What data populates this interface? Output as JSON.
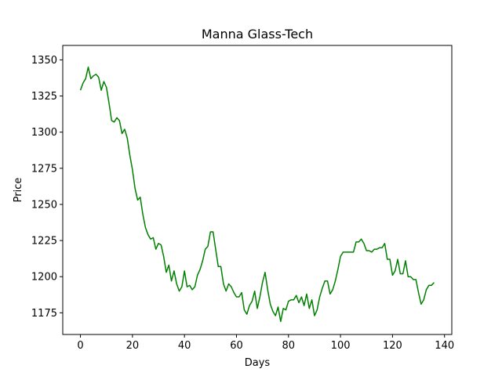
{
  "chart_data": {
    "type": "line",
    "title": "Manna Glass-Tech",
    "xlabel": "Days",
    "ylabel": "Price",
    "xlim": [
      -6.8,
      142.8
    ],
    "ylim": [
      1160,
      1360
    ],
    "xticks": [
      0,
      20,
      40,
      60,
      80,
      100,
      120,
      140
    ],
    "yticks": [
      1175,
      1200,
      1225,
      1250,
      1275,
      1300,
      1325,
      1350
    ],
    "grid": false,
    "line_color": "#008000",
    "series": [
      {
        "x": [
          0,
          1,
          2,
          3,
          4,
          5,
          6,
          7,
          8,
          9,
          10,
          11,
          12,
          13,
          14,
          15,
          16,
          17,
          18,
          19,
          20,
          21,
          22,
          23,
          24,
          25,
          26,
          27,
          28,
          29,
          30,
          31,
          32,
          33,
          34,
          35,
          36,
          37,
          38,
          39,
          40,
          41,
          42,
          43,
          44,
          45,
          46,
          47,
          48,
          49,
          50,
          51,
          52,
          53,
          54,
          55,
          56,
          57,
          58,
          59,
          60,
          61,
          62,
          63,
          64,
          65,
          66,
          67,
          68,
          69,
          70,
          71,
          72,
          73,
          74,
          75,
          76,
          77,
          78,
          79,
          80,
          81,
          82,
          83,
          84,
          85,
          86,
          87,
          88,
          89,
          90,
          91,
          92,
          93,
          94,
          95,
          96,
          97,
          98,
          99,
          100,
          101,
          102,
          103,
          104,
          105,
          106,
          107,
          108,
          109,
          110,
          111,
          112,
          113,
          114,
          115,
          116,
          117,
          118,
          119,
          120,
          121,
          122,
          123,
          124,
          125,
          126,
          127,
          128,
          129,
          130,
          131,
          132,
          133,
          134,
          135,
          136
        ],
        "y": [
          1329,
          1334,
          1337,
          1345,
          1337,
          1339,
          1340,
          1338,
          1329,
          1335,
          1331,
          1320,
          1308,
          1307,
          1310,
          1308,
          1299,
          1302,
          1296,
          1284,
          1274,
          1261,
          1253,
          1255,
          1243,
          1234,
          1229,
          1226,
          1227,
          1219,
          1223,
          1222,
          1214,
          1203,
          1208,
          1197,
          1204,
          1195,
          1190,
          1193,
          1204,
          1193,
          1194,
          1191,
          1193,
          1201,
          1205,
          1211,
          1219,
          1221,
          1231,
          1231,
          1219,
          1207,
          1207,
          1195,
          1190,
          1195,
          1193,
          1189,
          1186,
          1186,
          1189,
          1177,
          1174,
          1180,
          1183,
          1190,
          1178,
          1186,
          1196,
          1203,
          1191,
          1181,
          1176,
          1173,
          1179,
          1169,
          1178,
          1177,
          1183,
          1184,
          1184,
          1187,
          1182,
          1186,
          1180,
          1188,
          1178,
          1184,
          1173,
          1177,
          1186,
          1192,
          1197,
          1197,
          1188,
          1191,
          1197,
          1205,
          1214,
          1217,
          1217,
          1217,
          1217,
          1217,
          1224,
          1224,
          1226,
          1223,
          1218,
          1218,
          1217,
          1219,
          1219,
          1220,
          1220,
          1223,
          1212,
          1212,
          1201,
          1204,
          1212,
          1202,
          1202,
          1211,
          1200,
          1200,
          1198,
          1198,
          1189,
          1181,
          1184,
          1191,
          1194,
          1194,
          1196
        ]
      }
    ]
  }
}
